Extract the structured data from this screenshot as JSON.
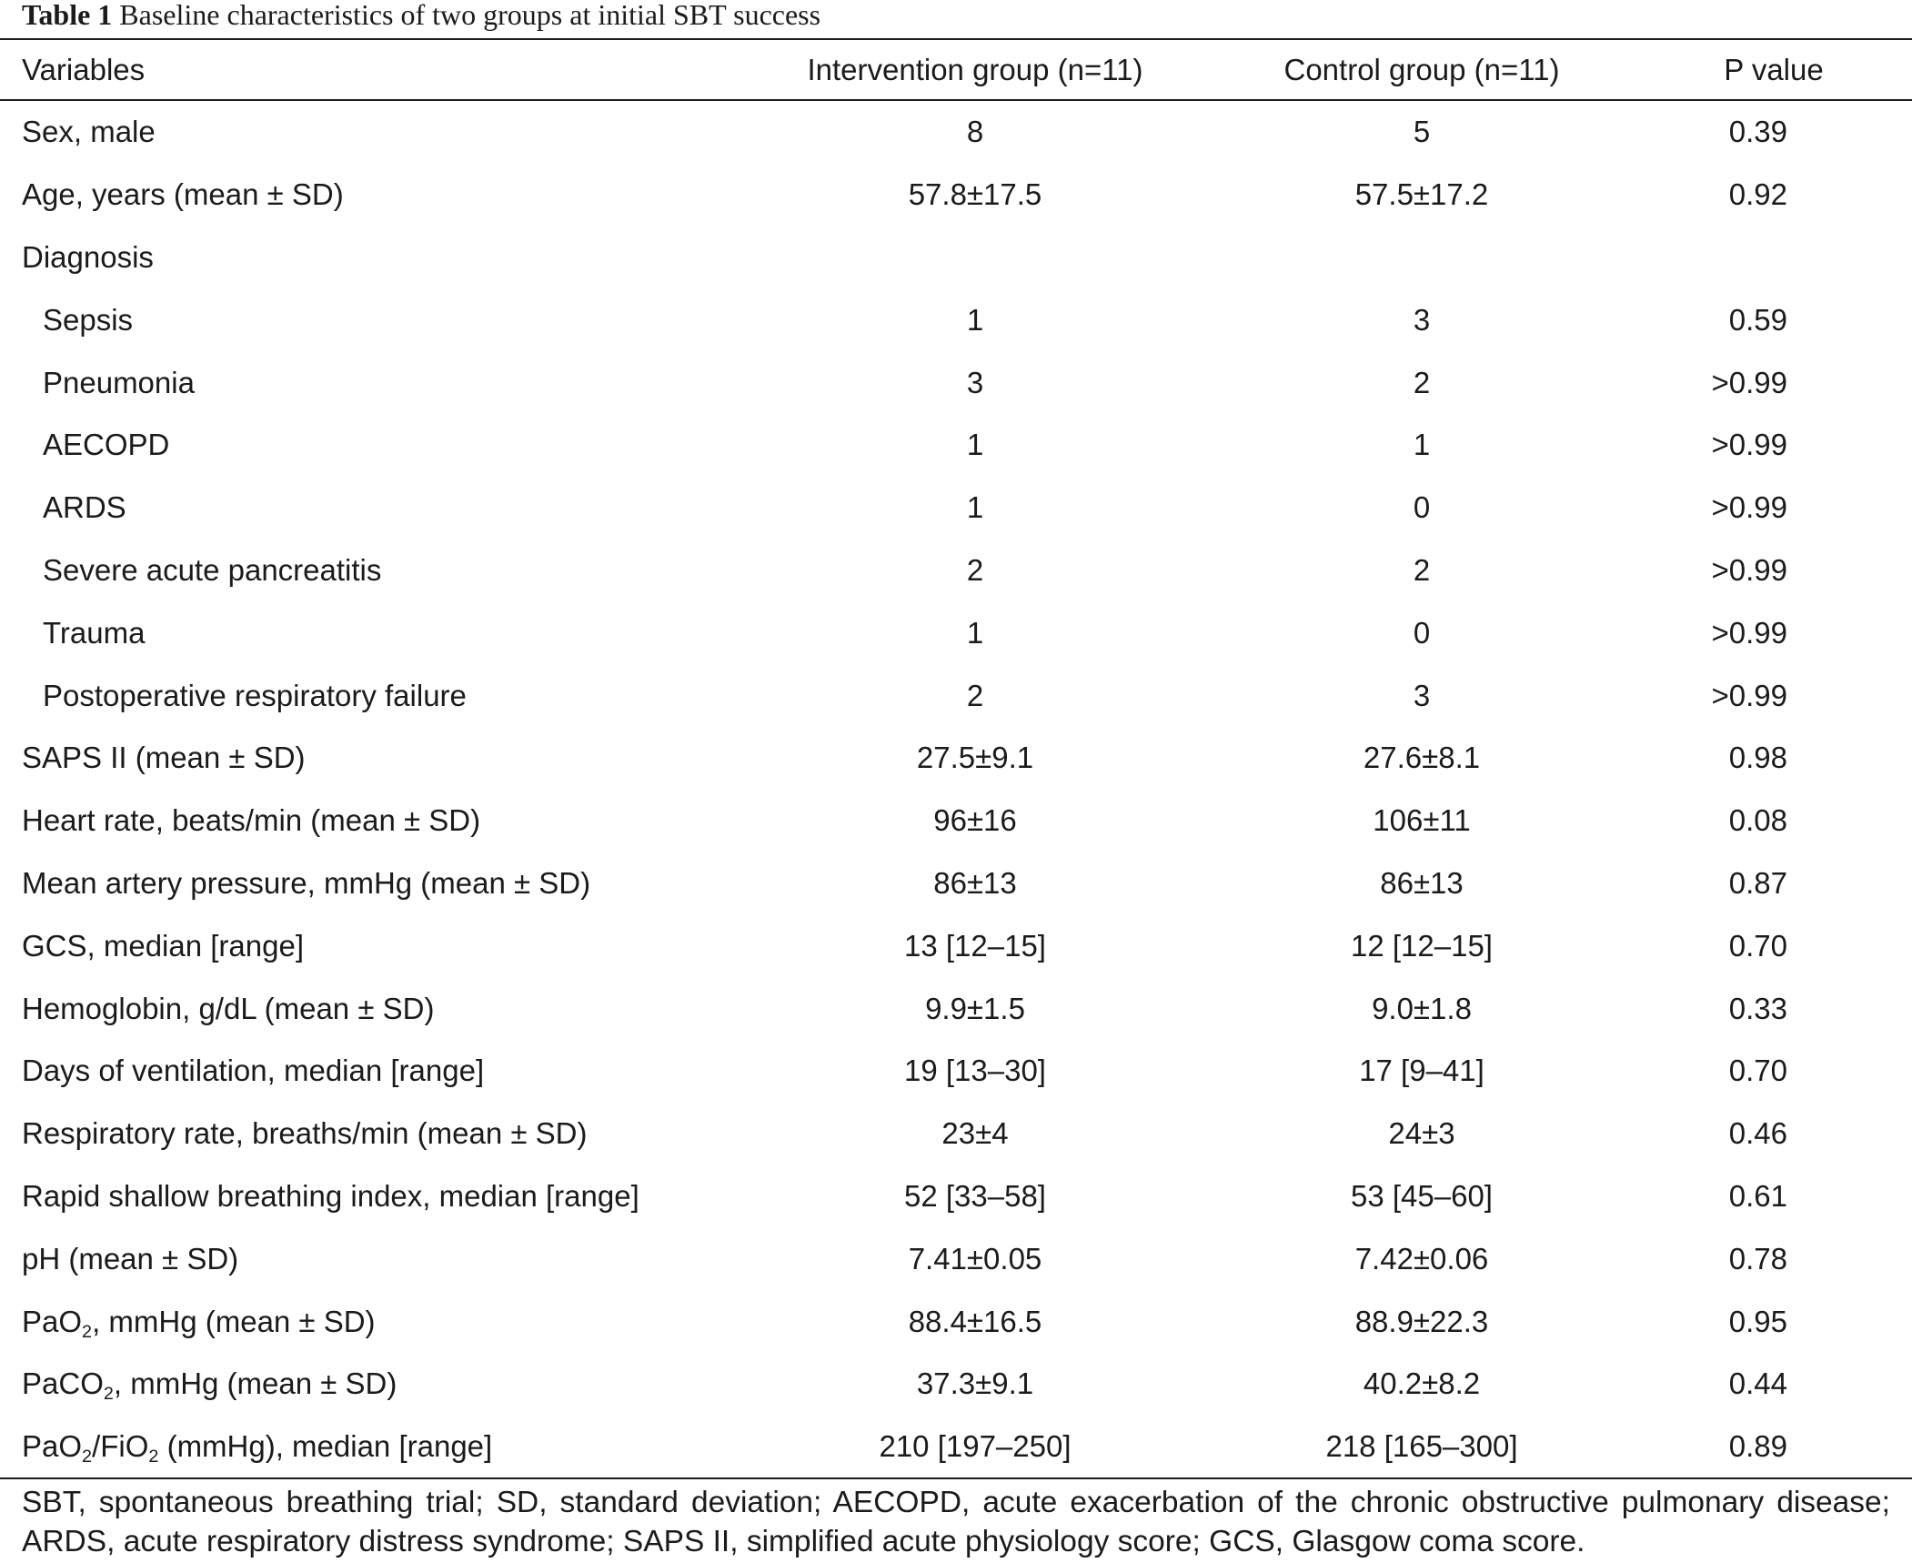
{
  "title": {
    "label": "Table 1",
    "text": "Baseline characteristics of two groups at initial SBT success"
  },
  "table": {
    "columns": [
      "Variables",
      "Intervention group (n=11)",
      "Control group (n=11)",
      "P value"
    ],
    "rows": [
      {
        "label": "Sex, male",
        "level": 0,
        "intervention": "8",
        "control": "5",
        "p_value": "0.39"
      },
      {
        "label": "Age, years (mean ± SD)",
        "level": 0,
        "intervention": "57.8±17.5",
        "control": "57.5±17.2",
        "p_value": "0.92"
      },
      {
        "label": "Diagnosis",
        "level": 0
      },
      {
        "label": "Sepsis",
        "level": 1,
        "intervention": "1",
        "control": "3",
        "p_value": "0.59"
      },
      {
        "label": "Pneumonia",
        "level": 1,
        "intervention": "3",
        "control": "2",
        "p_value": ">0.99"
      },
      {
        "label": "AECOPD",
        "level": 1,
        "intervention": "1",
        "control": "1",
        "p_value": ">0.99"
      },
      {
        "label": "ARDS",
        "level": 1,
        "intervention": "1",
        "control": "0",
        "p_value": ">0.99"
      },
      {
        "label": "Severe acute pancreatitis",
        "level": 1,
        "intervention": "2",
        "control": "2",
        "p_value": ">0.99"
      },
      {
        "label": "Trauma",
        "level": 1,
        "intervention": "1",
        "control": "0",
        "p_value": ">0.99"
      },
      {
        "label": "Postoperative respiratory failure",
        "level": 1,
        "intervention": "2",
        "control": "3",
        "p_value": ">0.99"
      },
      {
        "label": "SAPS II (mean ± SD)",
        "level": 0,
        "intervention": "27.5±9.1",
        "control": "27.6±8.1",
        "p_value": "0.98"
      },
      {
        "label": "Heart rate, beats/min (mean ± SD)",
        "level": 0,
        "intervention": "96±16",
        "control": "106±11",
        "p_value": "0.08"
      },
      {
        "label": "Mean artery pressure, mmHg (mean ± SD)",
        "level": 0,
        "intervention": "86±13",
        "control": "86±13",
        "p_value": "0.87"
      },
      {
        "label": "GCS, median [range]",
        "level": 0,
        "intervention": "13 [12–15]",
        "control": "12 [12–15]",
        "p_value": "0.70"
      },
      {
        "label": "Hemoglobin, g/dL (mean ± SD)",
        "level": 0,
        "intervention": "9.9±1.5",
        "control": "9.0±1.8",
        "p_value": "0.33"
      },
      {
        "label": "Days of ventilation, median [range]",
        "level": 0,
        "intervention": "19 [13–30]",
        "control": "17 [9–41]",
        "p_value": "0.70"
      },
      {
        "label": "Respiratory rate, breaths/min (mean ± SD)",
        "level": 0,
        "intervention": "23±4",
        "control": "24±3",
        "p_value": "0.46"
      },
      {
        "label": "Rapid shallow breathing index, median [range]",
        "level": 0,
        "intervention": "52 [33–58]",
        "control": "53 [45–60]",
        "p_value": "0.61"
      },
      {
        "label": "pH (mean ± SD)",
        "level": 0,
        "intervention": "7.41±0.05",
        "control": "7.42±0.06",
        "p_value": "0.78"
      },
      {
        "label_parts": [
          {
            "text": "PaO"
          },
          {
            "sub": "2"
          },
          {
            "text": ", mmHg (mean ± SD)"
          }
        ],
        "level": 0,
        "intervention": "88.4±16.5",
        "control": "88.9±22.3",
        "p_value": "0.95"
      },
      {
        "label_parts": [
          {
            "text": "PaCO"
          },
          {
            "sub": "2"
          },
          {
            "text": ", mmHg (mean ± SD)"
          }
        ],
        "level": 0,
        "intervention": "37.3±9.1",
        "control": "40.2±8.2",
        "p_value": "0.44"
      },
      {
        "label_parts": [
          {
            "text": "PaO"
          },
          {
            "sub": "2"
          },
          {
            "text": "/FiO"
          },
          {
            "sub": "2"
          },
          {
            "text": " (mmHg), median [range]"
          }
        ],
        "level": 0,
        "intervention": "210 [197–250]",
        "control": "218 [165–300]",
        "p_value": "0.89"
      }
    ]
  },
  "footnote": "SBT, spontaneous breathing trial; SD, standard deviation; AECOPD, acute exacerbation of the chronic obstructive pulmonary disease; ARDS, acute respiratory distress syndrome; SAPS II, simplified acute physiology score; GCS, Glasgow coma score."
}
